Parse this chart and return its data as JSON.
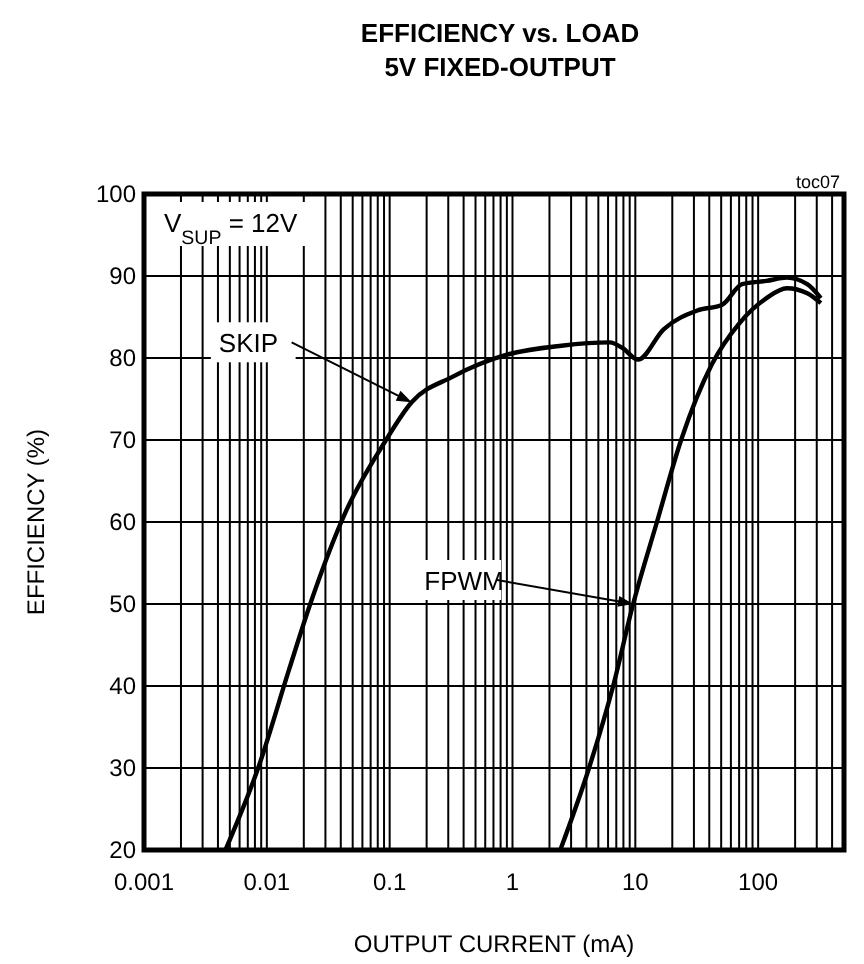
{
  "chart_data": {
    "type": "line",
    "title": "EFFICIENCY vs. LOAD",
    "subtitle": "5V FIXED-OUTPUT",
    "xlabel": "OUTPUT CURRENT (mA)",
    "ylabel": "EFFICIENCY (%)",
    "log": "x",
    "grid": true,
    "xlim": [
      0.001,
      500
    ],
    "ylim": [
      20,
      100
    ],
    "xticks": [
      0.001,
      {
        "value": 0.002,
        "label": null
      },
      {
        "value": 0.003,
        "label": null
      },
      {
        "value": 0.004,
        "label": null
      },
      {
        "value": 0.005,
        "label": null
      },
      {
        "value": 0.006,
        "label": null
      },
      {
        "value": 0.007,
        "label": null
      },
      {
        "value": 0.008,
        "label": null
      },
      {
        "value": 0.009,
        "label": null
      },
      0.01,
      {
        "value": 0.02,
        "label": null
      },
      {
        "value": 0.03,
        "label": null
      },
      {
        "value": 0.04,
        "label": null
      },
      {
        "value": 0.05,
        "label": null
      },
      {
        "value": 0.06,
        "label": null
      },
      {
        "value": 0.07,
        "label": null
      },
      {
        "value": 0.08,
        "label": null
      },
      {
        "value": 0.09,
        "label": null
      },
      0.1,
      {
        "value": 0.2,
        "label": null
      },
      {
        "value": 0.3,
        "label": null
      },
      {
        "value": 0.4,
        "label": null
      },
      {
        "value": 0.5,
        "label": null
      },
      {
        "value": 0.6,
        "label": null
      },
      {
        "value": 0.7,
        "label": null
      },
      {
        "value": 0.8,
        "label": null
      },
      {
        "value": 0.9,
        "label": null
      },
      1,
      {
        "value": 2,
        "label": null
      },
      {
        "value": 3,
        "label": null
      },
      {
        "value": 4,
        "label": null
      },
      {
        "value": 5,
        "label": null
      },
      {
        "value": 6,
        "label": null
      },
      {
        "value": 7,
        "label": null
      },
      {
        "value": 8,
        "label": null
      },
      {
        "value": 9,
        "label": null
      },
      10,
      {
        "value": 20,
        "label": null
      },
      {
        "value": 30,
        "label": null
      },
      {
        "value": 40,
        "label": null
      },
      {
        "value": 50,
        "label": null
      },
      {
        "value": 60,
        "label": null
      },
      {
        "value": 70,
        "label": null
      },
      {
        "value": 80,
        "label": null
      },
      {
        "value": 90,
        "label": null
      },
      100,
      {
        "value": 200,
        "label": null
      },
      {
        "value": 300,
        "label": null
      },
      {
        "value": 400,
        "label": null
      }
    ],
    "yticks": [
      20,
      30,
      40,
      50,
      60,
      70,
      80,
      90,
      100
    ],
    "marker": "none",
    "line_style": "solid",
    "series": [
      {
        "color": "#000000",
        "x": [
          0.0046,
          0.0085,
          0.0151,
          0.0221,
          0.0447,
          0.09,
          0.151,
          0.324,
          0.9,
          2.5,
          6.2,
          7.9,
          10.5,
          17,
          32,
          51,
          74,
          117,
          171,
          251,
          324
        ],
        "values": [
          20,
          30,
          41.9,
          49.6,
          61.5,
          69.6,
          74.6,
          77.7,
          80.4,
          81.5,
          81.9,
          81.2,
          79.8,
          83.5,
          85.8,
          86.5,
          89,
          89.4,
          89.8,
          89,
          87.3
        ]
      },
      {
        "color": "#000000",
        "x": [
          2.45,
          4.2,
          6.6,
          9.6,
          15,
          23.6,
          41.9,
          70,
          117,
          171,
          251,
          324
        ],
        "values": [
          20,
          30,
          40,
          50,
          60,
          70,
          79.2,
          84.2,
          87.3,
          88.5,
          87.9,
          86.7
        ]
      }
    ],
    "annotations": [
      "V$_{SUP}$ = 12V",
      "toc07",
      {
        "text": "SKIP",
        "x": 0.151,
        "y": 74.6
      },
      {
        "text": "FPWM",
        "x": 9.6,
        "y": 50
      }
    ]
  }
}
